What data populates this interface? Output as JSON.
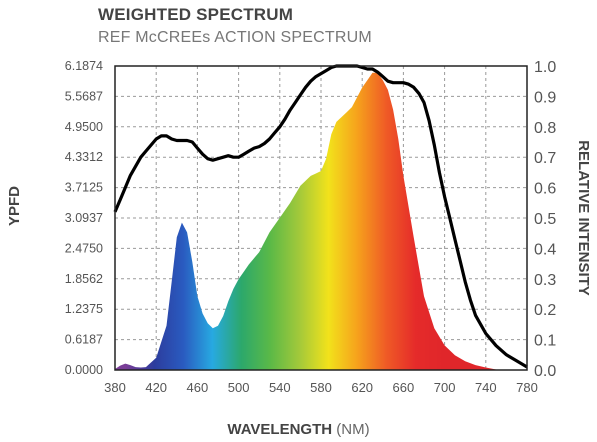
{
  "chart_data": {
    "type": "area",
    "title": "WEIGHTED SPECTRUM",
    "subtitle": "REF McCREEs ACTION SPECTRUM",
    "xlabel": "WAVELENGTH",
    "xlabel_unit": "(NM)",
    "ylabel_left": "YPFD",
    "ylabel_right": "RELATIVE INTENSITY",
    "xlim": [
      380,
      780
    ],
    "ylim_left": [
      0,
      6.1874
    ],
    "ylim_right": [
      0,
      1.0
    ],
    "grid": true,
    "x_ticks": [
      "380",
      "420",
      "460",
      "500",
      "540",
      "580",
      "620",
      "660",
      "700",
      "740",
      "780"
    ],
    "y_left_ticks": [
      "0.0000",
      "0.6187",
      "1.2375",
      "1.8562",
      "2.4750",
      "3.0937",
      "3.7125",
      "4.3312",
      "4.9500",
      "5.5687",
      "6.1874"
    ],
    "y_right_ticks": [
      "0.0",
      "0.1",
      "0.2",
      "0.3",
      "0.4",
      "0.5",
      "0.6",
      "0.7",
      "0.8",
      "0.9",
      "1.0"
    ],
    "series": [
      {
        "kind": "weighted-area",
        "axis": "left",
        "colors": [
          "#7a3d97",
          "#2c3c9d",
          "#2a5bc0",
          "#27a9e1",
          "#2ca86b",
          "#5bb947",
          "#a3c93a",
          "#f2e21b",
          "#f6a11c",
          "#ef5a26",
          "#e52b2a",
          "#e0262a"
        ],
        "x": [
          380,
          385,
          390,
          395,
          400,
          405,
          410,
          420,
          430,
          435,
          440,
          445,
          450,
          455,
          460,
          465,
          470,
          475,
          480,
          485,
          490,
          495,
          500,
          505,
          510,
          520,
          530,
          540,
          550,
          560,
          570,
          575,
          580,
          585,
          590,
          595,
          600,
          605,
          610,
          615,
          620,
          625,
          630,
          635,
          640,
          645,
          650,
          655,
          660,
          670,
          680,
          690,
          700,
          710,
          720,
          730,
          740,
          750
        ],
        "values": [
          0.02,
          0.09,
          0.13,
          0.1,
          0.06,
          0.05,
          0.06,
          0.25,
          0.9,
          1.8,
          2.7,
          3.0,
          2.8,
          2.2,
          1.5,
          1.15,
          0.95,
          0.85,
          0.9,
          1.1,
          1.4,
          1.65,
          1.85,
          2.0,
          2.15,
          2.4,
          2.8,
          3.1,
          3.4,
          3.75,
          3.95,
          4.0,
          4.05,
          4.3,
          4.8,
          5.05,
          5.15,
          5.25,
          5.35,
          5.55,
          5.75,
          5.9,
          6.05,
          6.05,
          5.9,
          5.7,
          5.3,
          4.7,
          3.95,
          2.7,
          1.5,
          0.85,
          0.5,
          0.3,
          0.18,
          0.1,
          0.05,
          0.01
        ]
      },
      {
        "kind": "line",
        "axis": "right",
        "color": "#000000",
        "x": [
          380,
          385,
          390,
          395,
          400,
          405,
          410,
          415,
          420,
          425,
          430,
          435,
          440,
          445,
          450,
          455,
          460,
          465,
          470,
          475,
          480,
          485,
          490,
          495,
          500,
          505,
          510,
          515,
          520,
          525,
          530,
          535,
          540,
          545,
          550,
          555,
          560,
          565,
          570,
          575,
          580,
          585,
          590,
          595,
          600,
          605,
          610,
          615,
          620,
          625,
          630,
          635,
          640,
          645,
          650,
          655,
          660,
          665,
          670,
          675,
          680,
          685,
          690,
          695,
          700,
          705,
          710,
          715,
          720,
          725,
          730,
          740,
          750,
          760,
          770,
          780
        ],
        "values": [
          0.52,
          0.56,
          0.6,
          0.64,
          0.67,
          0.7,
          0.72,
          0.74,
          0.76,
          0.77,
          0.77,
          0.76,
          0.755,
          0.755,
          0.755,
          0.75,
          0.73,
          0.71,
          0.695,
          0.69,
          0.695,
          0.7,
          0.705,
          0.7,
          0.7,
          0.71,
          0.72,
          0.73,
          0.735,
          0.745,
          0.76,
          0.78,
          0.8,
          0.825,
          0.855,
          0.88,
          0.905,
          0.93,
          0.95,
          0.965,
          0.975,
          0.985,
          0.995,
          1.0,
          1.0,
          1.0,
          1.0,
          1.0,
          0.995,
          0.99,
          0.99,
          0.98,
          0.965,
          0.95,
          0.945,
          0.945,
          0.945,
          0.94,
          0.93,
          0.91,
          0.88,
          0.82,
          0.74,
          0.65,
          0.57,
          0.5,
          0.43,
          0.36,
          0.29,
          0.23,
          0.18,
          0.12,
          0.08,
          0.05,
          0.03,
          0.01
        ]
      }
    ]
  }
}
